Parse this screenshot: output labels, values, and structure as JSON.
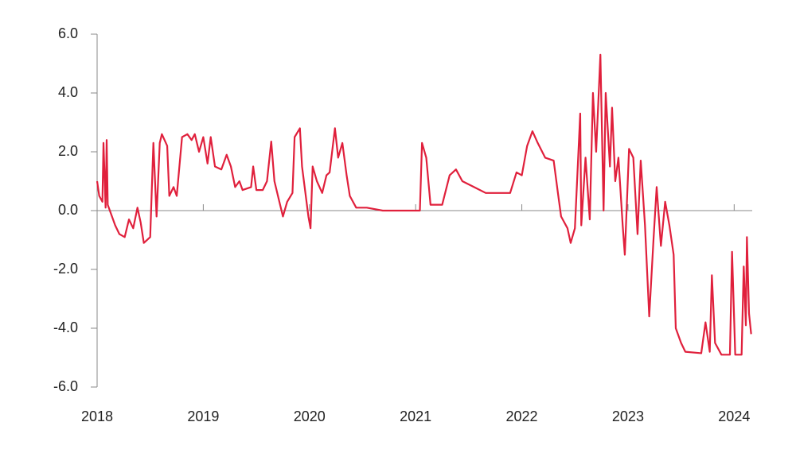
{
  "chart_data": {
    "type": "line",
    "color": "#e0203c",
    "x": [
      2018.0,
      2018.02,
      2018.05,
      2018.06,
      2018.08,
      2018.09,
      2018.1,
      2018.14,
      2018.17,
      2018.21,
      2018.26,
      2018.3,
      2018.34,
      2018.38,
      2018.41,
      2018.44,
      2018.5,
      2018.53,
      2018.56,
      2018.59,
      2018.61,
      2018.66,
      2018.68,
      2018.72,
      2018.75,
      2018.8,
      2018.85,
      2018.89,
      2018.92,
      2018.96,
      2019.0,
      2019.04,
      2019.07,
      2019.11,
      2019.17,
      2019.22,
      2019.26,
      2019.3,
      2019.34,
      2019.37,
      2019.45,
      2019.47,
      2019.5,
      2019.56,
      2019.6,
      2019.64,
      2019.67,
      2019.71,
      2019.75,
      2019.79,
      2019.84,
      2019.86,
      2019.91,
      2019.93,
      2019.99,
      2020.01,
      2020.03,
      2020.07,
      2020.12,
      2020.16,
      2020.19,
      2020.24,
      2020.27,
      2020.31,
      2020.35,
      2020.38,
      2020.44,
      2020.54,
      2020.69,
      2021.04,
      2021.06,
      2021.1,
      2021.14,
      2021.25,
      2021.32,
      2021.38,
      2021.44,
      2021.55,
      2021.66,
      2021.89,
      2021.95,
      2022.0,
      2022.05,
      2022.1,
      2022.15,
      2022.22,
      2022.3,
      2022.34,
      2022.37,
      2022.43,
      2022.46,
      2022.5,
      2022.55,
      2022.56,
      2022.6,
      2022.64,
      2022.67,
      2022.7,
      2022.74,
      2022.77,
      2022.79,
      2022.83,
      2022.85,
      2022.88,
      2022.91,
      2022.95,
      2022.97,
      2023.01,
      2023.05,
      2023.09,
      2023.12,
      2023.16,
      2023.2,
      2023.24,
      2023.27,
      2023.31,
      2023.35,
      2023.39,
      2023.43,
      2023.45,
      2023.5,
      2023.54,
      2023.69,
      2023.73,
      2023.77,
      2023.79,
      2023.82,
      2023.88,
      2023.96,
      2023.98,
      2024.01,
      2024.07,
      2024.09,
      2024.11,
      2024.12,
      2024.14,
      2024.16
    ],
    "values": [
      1.0,
      0.5,
      0.3,
      2.3,
      0.1,
      2.4,
      0.2,
      -0.2,
      -0.5,
      -0.8,
      -0.9,
      -0.3,
      -0.6,
      0.1,
      -0.4,
      -1.1,
      -0.9,
      2.3,
      -0.2,
      2.3,
      2.6,
      2.2,
      0.5,
      0.8,
      0.5,
      2.5,
      2.6,
      2.4,
      2.6,
      2.0,
      2.5,
      1.6,
      2.5,
      1.5,
      1.4,
      1.9,
      1.5,
      0.8,
      1.0,
      0.7,
      0.8,
      1.5,
      0.7,
      0.7,
      1.0,
      2.35,
      1.0,
      0.4,
      -0.2,
      0.3,
      0.6,
      2.5,
      2.8,
      1.5,
      -0.2,
      -0.6,
      1.5,
      1.0,
      0.6,
      1.2,
      1.3,
      2.8,
      1.8,
      2.3,
      1.2,
      0.5,
      0.1,
      0.1,
      0.0,
      0.0,
      2.3,
      1.8,
      0.2,
      0.2,
      1.2,
      1.4,
      1.0,
      0.8,
      0.6,
      0.6,
      1.3,
      1.2,
      2.2,
      2.7,
      2.3,
      1.8,
      1.7,
      0.6,
      -0.2,
      -0.6,
      -1.1,
      -0.6,
      3.3,
      -0.5,
      1.8,
      -0.3,
      4.0,
      2.0,
      5.3,
      0.0,
      4.0,
      1.5,
      3.5,
      1.0,
      1.8,
      -0.5,
      -1.5,
      2.1,
      1.8,
      -0.8,
      1.7,
      -0.5,
      -3.6,
      -1.0,
      0.8,
      -1.2,
      0.3,
      -0.5,
      -1.5,
      -4.0,
      -4.5,
      -4.8,
      -4.85,
      -3.8,
      -4.8,
      -2.2,
      -4.5,
      -4.9,
      -4.9,
      -1.4,
      -4.9,
      -4.9,
      -1.9,
      -3.9,
      -0.9,
      -3.5,
      -4.2
    ],
    "xlim": [
      2018,
      2024.17
    ],
    "xticks": [
      2018,
      2019,
      2020,
      2021,
      2022,
      2023,
      2024
    ],
    "ylim": [
      -6,
      6
    ],
    "yticks": [
      {
        "value": 6,
        "label": "6.0"
      },
      {
        "value": 4,
        "label": "4.0"
      },
      {
        "value": 2,
        "label": "2.0"
      },
      {
        "value": 0,
        "label": "0.0"
      },
      {
        "value": -2,
        "label": "-2.0"
      },
      {
        "value": -4,
        "label": "-4.0"
      },
      {
        "value": -6,
        "label": "-6.0"
      }
    ],
    "grid": false
  }
}
